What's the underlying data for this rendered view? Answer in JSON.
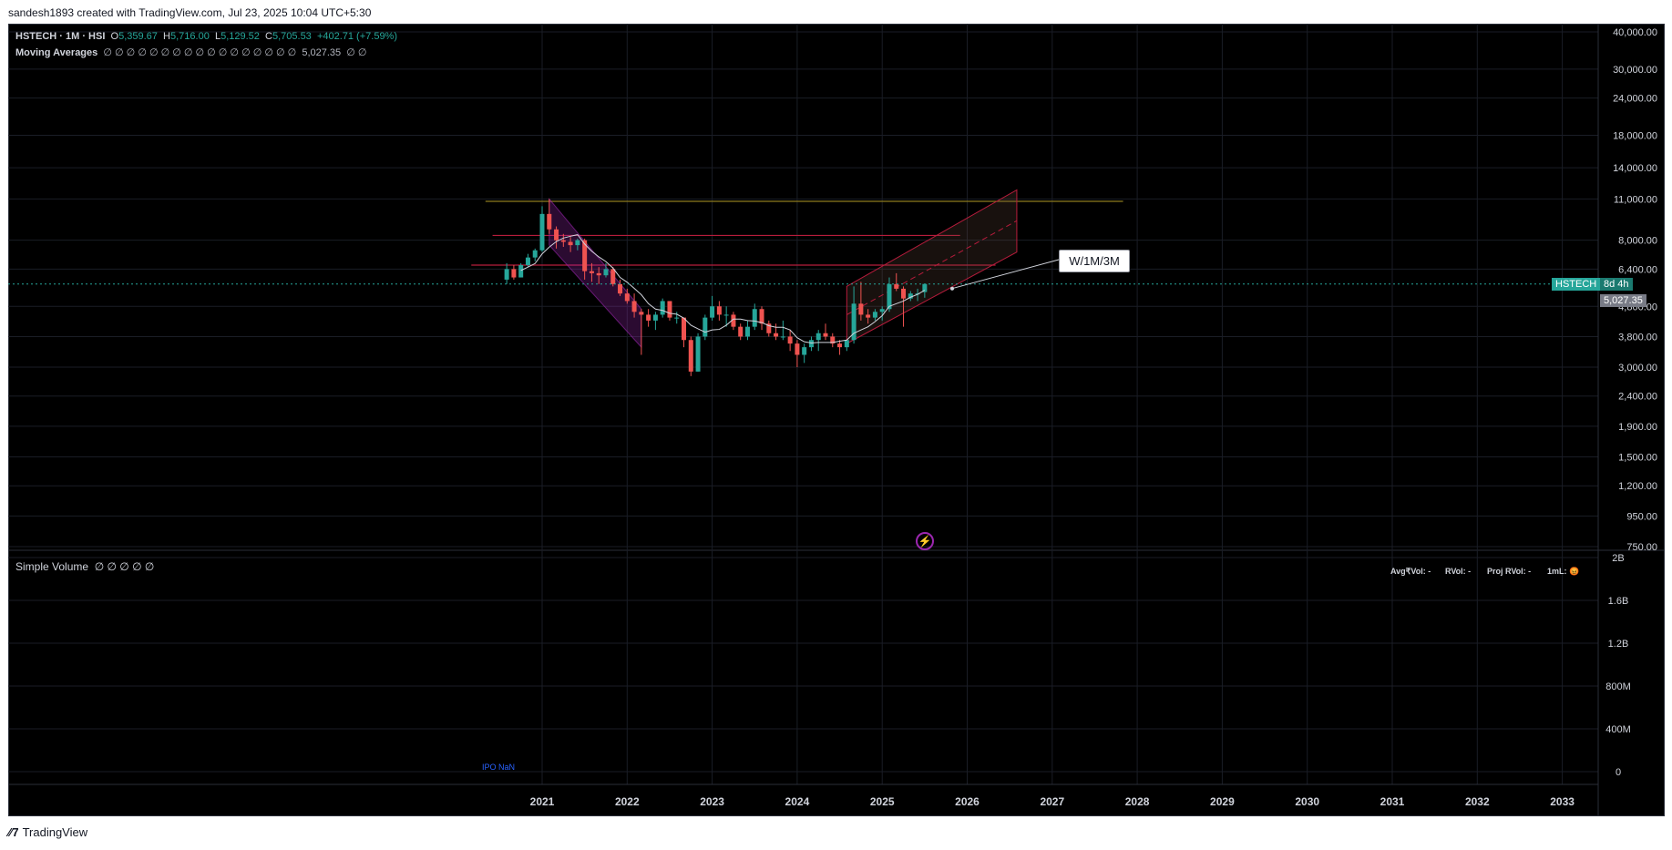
{
  "header": {
    "attribution": "sandesh1893 created with TradingView.com, Jul 23, 2025 10:04 UTC+5:30"
  },
  "footer": {
    "brand": "TradingView",
    "logo_icon": "tradingview-logo-icon"
  },
  "legend": {
    "symbol": "HSTECH · 1M · HSI",
    "o_label": "O",
    "o_value": "5,359.67",
    "h_label": "H",
    "h_value": "5,716.00",
    "l_label": "L",
    "l_value": "5,129.52",
    "c_label": "C",
    "c_value": "5,705.53",
    "change": "+402.71 (+7.59%)",
    "ma_name": "Moving Averages",
    "ma_values": "∅ ∅ ∅ ∅ ∅ ∅ ∅ ∅ ∅ ∅ ∅ ∅ ∅ ∅ ∅ ∅ ∅",
    "ma_last": "5,027.35",
    "ma_tail": "∅ ∅",
    "volume_name": "Simple Volume",
    "volume_values": "∅ ∅ ∅ ∅ ∅"
  },
  "rvol": {
    "avg": "Avg₹Vol: -",
    "rvol": "RVol: -",
    "proj": "Proj RVol: -",
    "ml": "1mL: 😡"
  },
  "ipo_label": "IPO NaN",
  "callout": "W/1M/3M",
  "price_tags": {
    "symbol": "HSTECH",
    "countdown": "8d 4h",
    "ma": "5,027.35"
  },
  "colors": {
    "up": "#26a69a",
    "down": "#ef5350",
    "channel_down": "#9c27b0",
    "line_red": "#b71c3c",
    "line_olive": "#8d7b1f",
    "ma_line": "#d1d4dc"
  },
  "chart_data": {
    "type": "candlestick",
    "symbol": "HSTECH",
    "timeframe": "1M",
    "price_axis": {
      "scale": "log",
      "ticks": [
        "40,000.00",
        "30,000.00",
        "24,000.00",
        "18,000.00",
        "14,000.00",
        "11,000.00",
        "8,000.00",
        "6,400.00",
        "4,800.00",
        "3,800.00",
        "3,000.00",
        "2,400.00",
        "1,900.00",
        "1,500.00",
        "1,200.00",
        "950.00",
        "750.00"
      ]
    },
    "volume_axis": {
      "ticks": [
        "2B",
        "1.6B",
        "1.2B",
        "800M",
        "400M",
        "0"
      ]
    },
    "x_axis": {
      "ticks": [
        "2021",
        "2022",
        "2023",
        "2024",
        "2025",
        "2026",
        "2027",
        "2028",
        "2029",
        "2030",
        "2031",
        "2032",
        "2033"
      ]
    },
    "current_price": 5705.53,
    "series": [
      {
        "name": "HSTECH",
        "ohlc": [
          [
            "2020-08",
            5900,
            6700,
            5700,
            6400
          ],
          [
            "2020-09",
            6400,
            6600,
            5900,
            6000
          ],
          [
            "2020-10",
            6000,
            6700,
            6000,
            6600
          ],
          [
            "2020-11",
            6600,
            7200,
            6500,
            7000
          ],
          [
            "2020-12",
            7000,
            7500,
            6800,
            7400
          ],
          [
            "2021-01",
            7400,
            10400,
            7300,
            9800
          ],
          [
            "2021-02",
            9800,
            11000,
            8400,
            8700
          ],
          [
            "2021-03",
            8700,
            8900,
            7500,
            8000
          ],
          [
            "2021-04",
            8000,
            8400,
            7600,
            7900
          ],
          [
            "2021-05",
            7900,
            8200,
            7300,
            7700
          ],
          [
            "2021-06",
            7700,
            8100,
            7400,
            8000
          ],
          [
            "2021-07",
            8000,
            8100,
            5900,
            6300
          ],
          [
            "2021-08",
            6300,
            6700,
            5800,
            6200
          ],
          [
            "2021-09",
            6200,
            6500,
            5700,
            6100
          ],
          [
            "2021-10",
            6100,
            6700,
            6000,
            6400
          ],
          [
            "2021-11",
            6400,
            6500,
            5600,
            5700
          ],
          [
            "2021-12",
            5700,
            5900,
            5200,
            5300
          ],
          [
            "2022-01",
            5300,
            5500,
            4900,
            5000
          ],
          [
            "2022-02",
            5000,
            5300,
            4400,
            4600
          ],
          [
            "2022-03",
            4600,
            4700,
            3300,
            4500
          ],
          [
            "2022-04",
            4500,
            4700,
            4100,
            4300
          ],
          [
            "2022-05",
            4300,
            4600,
            4000,
            4500
          ],
          [
            "2022-06",
            4500,
            5100,
            4400,
            5000
          ],
          [
            "2022-07",
            5000,
            5000,
            4300,
            4400
          ],
          [
            "2022-08",
            4400,
            4600,
            4200,
            4400
          ],
          [
            "2022-09",
            4400,
            4400,
            3500,
            3700
          ],
          [
            "2022-10",
            3700,
            3800,
            2800,
            2900
          ],
          [
            "2022-11",
            2900,
            3900,
            2900,
            3800
          ],
          [
            "2022-12",
            3800,
            4500,
            3700,
            4400
          ],
          [
            "2023-01",
            4400,
            5200,
            4300,
            4800
          ],
          [
            "2023-02",
            4800,
            5000,
            4300,
            4500
          ],
          [
            "2023-03",
            4500,
            4800,
            4100,
            4500
          ],
          [
            "2023-04",
            4500,
            4600,
            4000,
            4100
          ],
          [
            "2023-05",
            4100,
            4200,
            3700,
            3800
          ],
          [
            "2023-06",
            3800,
            4300,
            3700,
            4100
          ],
          [
            "2023-07",
            4100,
            4900,
            4000,
            4700
          ],
          [
            "2023-08",
            4700,
            4800,
            4000,
            4200
          ],
          [
            "2023-09",
            4200,
            4300,
            3800,
            3900
          ],
          [
            "2023-10",
            3900,
            4200,
            3700,
            3800
          ],
          [
            "2023-11",
            3800,
            4300,
            3700,
            3800
          ],
          [
            "2023-12",
            3800,
            4000,
            3400,
            3600
          ],
          [
            "2024-01",
            3600,
            3700,
            3000,
            3300
          ],
          [
            "2024-02",
            3300,
            3600,
            3100,
            3500
          ],
          [
            "2024-03",
            3500,
            3800,
            3400,
            3700
          ],
          [
            "2024-04",
            3700,
            4000,
            3400,
            3900
          ],
          [
            "2024-05",
            3900,
            4200,
            3700,
            3800
          ],
          [
            "2024-06",
            3800,
            3900,
            3500,
            3600
          ],
          [
            "2024-07",
            3600,
            3700,
            3300,
            3500
          ],
          [
            "2024-08",
            3500,
            3700,
            3400,
            3700
          ],
          [
            "2024-09",
            3700,
            5600,
            3600,
            4900
          ],
          [
            "2024-10",
            4900,
            5800,
            4300,
            4500
          ],
          [
            "2024-11",
            4500,
            4700,
            4200,
            4400
          ],
          [
            "2024-12",
            4400,
            4700,
            4300,
            4600
          ],
          [
            "2025-01",
            4600,
            4800,
            4300,
            4700
          ],
          [
            "2025-02",
            4700,
            6000,
            4600,
            5700
          ],
          [
            "2025-03",
            5700,
            6200,
            5400,
            5500
          ],
          [
            "2025-04",
            5500,
            5600,
            4100,
            5100
          ],
          [
            "2025-05",
            5100,
            5400,
            5000,
            5300
          ],
          [
            "2025-06",
            5300,
            5500,
            5000,
            5300
          ],
          [
            "2025-07",
            5359.67,
            5716,
            5129.52,
            5705.53
          ]
        ]
      },
      {
        "name": "Moving Averages",
        "last_value": 5027.35
      }
    ],
    "drawings": [
      {
        "kind": "horizontal-line",
        "price": 10800,
        "from": "2020-05",
        "to": "2027-11",
        "color": "#8d7b1f"
      },
      {
        "kind": "horizontal-line",
        "price": 8300,
        "from": "2020-06",
        "to": "2025-12",
        "color": "#b71c3c"
      },
      {
        "kind": "horizontal-line",
        "price": 6600,
        "from": "2020-03",
        "to": "2026-05",
        "color": "#b71c3c"
      },
      {
        "kind": "descending-channel",
        "from": "2021-02",
        "to": "2022-03",
        "color": "#9c27b0"
      },
      {
        "kind": "ascending-channel",
        "from": "2024-08",
        "to": "2026-08",
        "color": "#b71c3c"
      }
    ]
  }
}
